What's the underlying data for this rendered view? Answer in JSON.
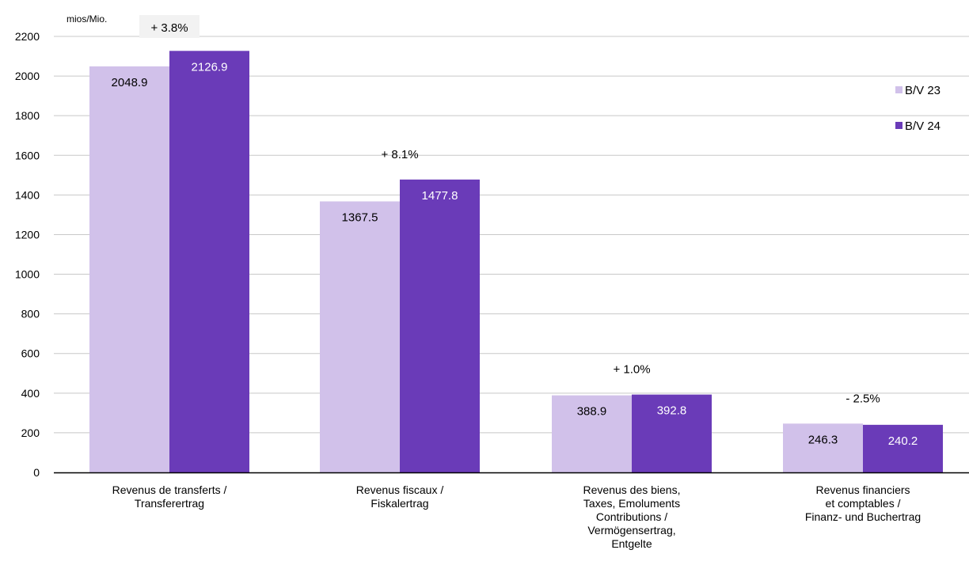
{
  "chart_data": {
    "type": "bar",
    "unit_label": "mios/Mio.",
    "categories": [
      [
        "Revenus de transferts /",
        "Transferertrag"
      ],
      [
        "Revenus fiscaux /",
        "Fiskalertrag"
      ],
      [
        "Revenus des biens,",
        "Taxes, Emoluments",
        "Contributions /",
        "Vermögensertrag,",
        "Entgelte"
      ],
      [
        "Revenus financiers",
        "et comptables /",
        "Finanz- und Buchertrag"
      ]
    ],
    "series": [
      {
        "name": "B/V 23",
        "color": "#d1c1ea",
        "label_color": "#000000",
        "values": [
          2048.9,
          1367.5,
          388.9,
          246.3
        ]
      },
      {
        "name": "B/V 24",
        "color": "#6a3bb8",
        "label_color": "#ffffff",
        "values": [
          2126.9,
          1477.8,
          392.8,
          240.2
        ]
      }
    ],
    "value_labels": [
      [
        "2048.9",
        "1367.5",
        "388.9",
        "246.3"
      ],
      [
        "2126.9",
        "1477.8",
        "392.8",
        "240.2"
      ]
    ],
    "change_labels": [
      "+ 3.8%",
      "+ 8.1%",
      "+ 1.0%",
      "- 2.5%"
    ],
    "ylim": [
      0,
      2200
    ],
    "yticks": [
      0,
      200,
      400,
      600,
      800,
      1000,
      1200,
      1400,
      1600,
      1800,
      2000,
      2200
    ],
    "grid": true,
    "legend_position": "right"
  }
}
